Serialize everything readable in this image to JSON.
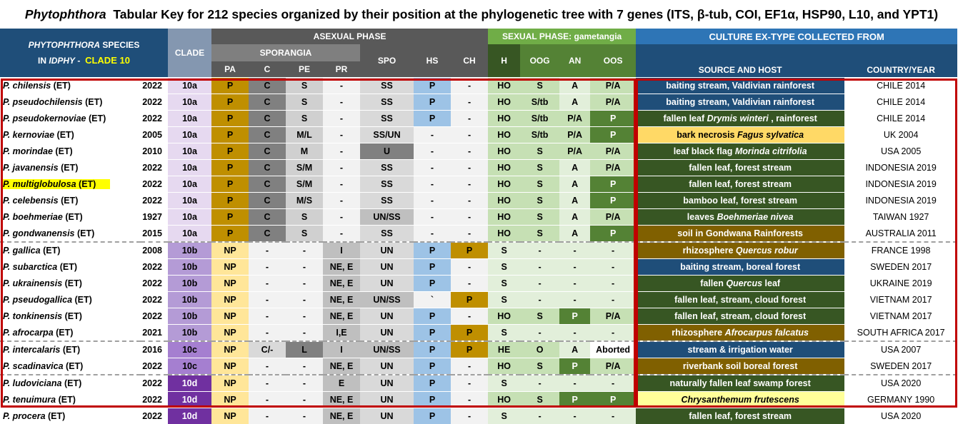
{
  "title": {
    "genus": "Phytophthora",
    "rest": "Tabular Key for 212 species organized by their position at the phylogenetic tree with 7 genes (ITS, β-tub, COI, EF1α, HSP90, L10, and YPT1)"
  },
  "header": {
    "species_line1_a": "PHYTOPHTHORA",
    "species_line1_b": "SPECIES",
    "species_line2_a": "IN",
    "species_line2_b": "IDPHY",
    "species_line2_c": "-",
    "species_clade": "CLADE 10",
    "clade": "CLADE",
    "asexual": "ASEXUAL PHASE",
    "sporangia": "SPORANGIA",
    "sexual": "SEXUAL PHASE: gametangia",
    "culture": "CULTURE EX-TYPE COLLECTED FROM",
    "pa": "PA",
    "c": "C",
    "pe": "PE",
    "pr": "PR",
    "spo": "SPO",
    "hs": "HS",
    "ch": "CH",
    "h": "H",
    "oog": "OOG",
    "an": "AN",
    "oos": "OOS",
    "source": "SOURCE AND HOST",
    "country": "COUNTRY/YEAR"
  },
  "colors": {
    "title_bar": "#1f4e79",
    "clade_header": "#8497b0",
    "asexual_header": "#595959",
    "sexual_header": "#70ad47",
    "culture_header": "#2e75b6",
    "frame": "#c00000"
  },
  "rows": [
    {
      "species": "P. chilensis",
      "et": "(ET)",
      "year": "2022",
      "clade": "10a",
      "pa": "P",
      "c": "C",
      "pe": "S",
      "pr": "-",
      "spo": "SS",
      "hs": "P",
      "ch": "-",
      "h": "HO",
      "oog": "S",
      "an": "A",
      "oos": "P/A",
      "host": "baiting stream, Valdivian rainforest",
      "host_i": "",
      "host_post": "",
      "country": "CHILE 2014",
      "cls": {
        "clade": "c-a",
        "pa": "pa-p",
        "c": "c-dark",
        "pe": "pe-c",
        "pr": "pr-c",
        "spo": "spo-c",
        "hs": "hs-p",
        "ch": "ch-n",
        "h": "sx-a",
        "oog": "sx-a",
        "an": "sx-b",
        "oos": "sx-a",
        "host": "src-blue"
      }
    },
    {
      "species": "P. pseudochilensis",
      "et": "(ET)",
      "year": "2022",
      "clade": "10a",
      "pa": "P",
      "c": "C",
      "pe": "S",
      "pr": "-",
      "spo": "SS",
      "hs": "P",
      "ch": "-",
      "h": "HO",
      "oog": "S/tb",
      "an": "A",
      "oos": "P/A",
      "host": "baiting stream, Valdivian rainforest",
      "host_i": "",
      "host_post": "",
      "country": "CHILE 2014",
      "cls": {
        "clade": "c-a",
        "pa": "pa-p",
        "c": "c-dark",
        "pe": "pe-c",
        "pr": "pr-c",
        "spo": "spo-c",
        "hs": "hs-p",
        "ch": "ch-n",
        "h": "sx-a",
        "oog": "sx-a",
        "an": "sx-b",
        "oos": "sx-a",
        "host": "src-blue"
      }
    },
    {
      "species": "P. pseudokernoviae",
      "et": "(ET)",
      "year": "2022",
      "clade": "10a",
      "pa": "P",
      "c": "C",
      "pe": "S",
      "pr": "-",
      "spo": "SS",
      "hs": "P",
      "ch": "-",
      "h": "HO",
      "oog": "S/tb",
      "an": "P/A",
      "oos": "P",
      "host": "fallen leaf ",
      "host_i": "Drymis winteri",
      "host_post": " , rainforest",
      "country": "CHILE 2014",
      "cls": {
        "clade": "c-a",
        "pa": "pa-p",
        "c": "c-dark",
        "pe": "pe-c",
        "pr": "pr-c",
        "spo": "spo-c",
        "hs": "hs-p",
        "ch": "ch-n",
        "h": "sx-a",
        "oog": "sx-a",
        "an": "sx-a",
        "oos": "sx-p",
        "host": "src-green"
      }
    },
    {
      "species": "P. kernoviae",
      "et": "(ET)",
      "year": "2005",
      "clade": "10a",
      "pa": "P",
      "c": "C",
      "pe": "M/L",
      "pr": "-",
      "spo": "SS/UN",
      "hs": "-",
      "ch": "-",
      "h": "HO",
      "oog": "S/tb",
      "an": "P/A",
      "oos": "P",
      "host": "bark necrosis ",
      "host_i": "Fagus sylvatica",
      "host_post": "",
      "country": "UK 2004",
      "cls": {
        "clade": "c-a",
        "pa": "pa-p",
        "c": "c-dark",
        "pe": "pe-c",
        "pr": "pr-c",
        "spo": "spo-c",
        "hs": "hs-n",
        "ch": "ch-n",
        "h": "sx-a",
        "oog": "sx-a",
        "an": "sx-a",
        "oos": "sx-p",
        "host": "src-yel"
      }
    },
    {
      "species": "P. morindae",
      "et": "(ET)",
      "year": "2010",
      "clade": "10a",
      "pa": "P",
      "c": "C",
      "pe": "M",
      "pr": "-",
      "spo": "U",
      "hs": "-",
      "ch": "-",
      "h": "HO",
      "oog": "S",
      "an": "P/A",
      "oos": "P/A",
      "host": "leaf black flag ",
      "host_i": "Morinda citrifolia",
      "host_post": "",
      "country": "USA 2005",
      "cls": {
        "clade": "c-a",
        "pa": "pa-p",
        "c": "c-dark",
        "pe": "pe-c",
        "pr": "pr-c",
        "spo": "spo-x",
        "hs": "hs-n",
        "ch": "ch-n",
        "h": "sx-a",
        "oog": "sx-a",
        "an": "sx-a",
        "oos": "sx-a",
        "host": "src-green"
      }
    },
    {
      "species": "P. javanensis",
      "et": "(ET)",
      "year": "2022",
      "clade": "10a",
      "pa": "P",
      "c": "C",
      "pe": "S/M",
      "pr": "-",
      "spo": "SS",
      "hs": "-",
      "ch": "-",
      "h": "HO",
      "oog": "S",
      "an": "A",
      "oos": "P/A",
      "host": "fallen leaf, forest stream",
      "host_i": "",
      "host_post": "",
      "country": "INDONESIA 2019",
      "cls": {
        "clade": "c-a",
        "pa": "pa-p",
        "c": "c-dark",
        "pe": "pe-c",
        "pr": "pr-c",
        "spo": "spo-c",
        "hs": "hs-n",
        "ch": "ch-n",
        "h": "sx-a",
        "oog": "sx-a",
        "an": "sx-b",
        "oos": "sx-a",
        "host": "src-green"
      }
    },
    {
      "species": "P. multiglobulosa",
      "et": "(ET)",
      "year": "2022",
      "clade": "10a",
      "pa": "P",
      "c": "C",
      "pe": "S/M",
      "pr": "-",
      "spo": "SS",
      "hs": "-",
      "ch": "-",
      "h": "HO",
      "oog": "S",
      "an": "A",
      "oos": "P",
      "host": "fallen leaf, forest stream",
      "host_i": "",
      "host_post": "",
      "country": "INDONESIA 2019",
      "hl": true,
      "cls": {
        "clade": "c-a",
        "pa": "pa-p",
        "c": "c-dark",
        "pe": "pe-c",
        "pr": "pr-c",
        "spo": "spo-c",
        "hs": "hs-n",
        "ch": "ch-n",
        "h": "sx-a",
        "oog": "sx-a",
        "an": "sx-b",
        "oos": "sx-p",
        "host": "src-green"
      }
    },
    {
      "species": "P. celebensis",
      "et": "(ET)",
      "year": "2022",
      "clade": "10a",
      "pa": "P",
      "c": "C",
      "pe": "M/S",
      "pr": "-",
      "spo": "SS",
      "hs": "-",
      "ch": "-",
      "h": "HO",
      "oog": "S",
      "an": "A",
      "oos": "P",
      "host": "bamboo leaf, forest stream",
      "host_i": "",
      "host_post": "",
      "country": "INDONESIA 2019",
      "cls": {
        "clade": "c-a",
        "pa": "pa-p",
        "c": "c-dark",
        "pe": "pe-c",
        "pr": "pr-c",
        "spo": "spo-c",
        "hs": "hs-n",
        "ch": "ch-n",
        "h": "sx-a",
        "oog": "sx-a",
        "an": "sx-b",
        "oos": "sx-p",
        "host": "src-green"
      }
    },
    {
      "species": "P. boehmeriae",
      "et": "(ET)",
      "year": "1927",
      "clade": "10a",
      "pa": "P",
      "c": "C",
      "pe": "S",
      "pr": "-",
      "spo": "UN/SS",
      "hs": "-",
      "ch": "-",
      "h": "HO",
      "oog": "S",
      "an": "A",
      "oos": "P/A",
      "host": "leaves ",
      "host_i": "Boehmeriae nivea",
      "host_post": "",
      "country": "TAIWAN 1927",
      "cls": {
        "clade": "c-a",
        "pa": "pa-p",
        "c": "c-dark",
        "pe": "pe-c",
        "pr": "pr-c",
        "spo": "spo-d",
        "hs": "hs-n",
        "ch": "ch-n",
        "h": "sx-a",
        "oog": "sx-a",
        "an": "sx-b",
        "oos": "sx-a",
        "host": "src-green"
      }
    },
    {
      "species": "P. gondwanensis",
      "et": "(ET)",
      "year": "2015",
      "clade": "10a",
      "pa": "P",
      "c": "C",
      "pe": "S",
      "pr": "-",
      "spo": "SS",
      "hs": "-",
      "ch": "-",
      "h": "HO",
      "oog": "S",
      "an": "A",
      "oos": "P",
      "host": "soil in Gondwana Rainforests",
      "host_i": "",
      "host_post": "",
      "country": "AUSTRALIA 2011",
      "cls": {
        "clade": "c-a",
        "pa": "pa-p",
        "c": "c-dark",
        "pe": "pe-c",
        "pr": "pr-c",
        "spo": "spo-c",
        "hs": "hs-n",
        "ch": "ch-n",
        "h": "sx-a",
        "oog": "sx-a",
        "an": "sx-b",
        "oos": "sx-p",
        "host": "src-brown"
      }
    },
    {
      "species": "P. gallica",
      "et": "(ET)",
      "year": "2008",
      "clade": "10b",
      "pa": "NP",
      "c": "-",
      "pe": "-",
      "pr": "I",
      "spo": "UN",
      "hs": "P",
      "ch": "P",
      "h": "S",
      "oog": "-",
      "an": "-",
      "oos": "-",
      "host": "rhizosphere ",
      "host_i": "Quercus robur",
      "host_post": "",
      "country": "FRANCE 1998",
      "dash": true,
      "cls": {
        "clade": "c-b",
        "pa": "pa-np",
        "c": "pr-c",
        "pe": "pr-c",
        "pr": "pr-d",
        "spo": "spo-c",
        "hs": "hs-p",
        "ch": "ch-p",
        "h": "sx-b",
        "oog": "sx-b",
        "an": "sx-b",
        "oos": "sx-b",
        "host": "src-brown"
      }
    },
    {
      "species": "P. subarctica",
      "et": "(ET)",
      "year": "2022",
      "clade": "10b",
      "pa": "NP",
      "c": "-",
      "pe": "-",
      "pr": "NE, E",
      "spo": "UN",
      "hs": "P",
      "ch": "-",
      "h": "S",
      "oog": "-",
      "an": "-",
      "oos": "-",
      "host": "baiting stream, boreal forest",
      "host_i": "",
      "host_post": "",
      "country": "SWEDEN 2017",
      "cls": {
        "clade": "c-b",
        "pa": "pa-np",
        "c": "pr-c",
        "pe": "pr-c",
        "pr": "pr-d",
        "spo": "spo-c",
        "hs": "hs-p",
        "ch": "ch-n",
        "h": "sx-b",
        "oog": "sx-b",
        "an": "sx-b",
        "oos": "sx-b",
        "host": "src-blue"
      }
    },
    {
      "species": "P. ukrainensis",
      "et": "(ET)",
      "year": "2022",
      "clade": "10b",
      "pa": "NP",
      "c": "-",
      "pe": "-",
      "pr": "NE, E",
      "spo": "UN",
      "hs": "P",
      "ch": "-",
      "h": "S",
      "oog": "-",
      "an": "-",
      "oos": "-",
      "host": "fallen ",
      "host_i": "Quercus",
      "host_post": " leaf",
      "country": "UKRAINE 2019",
      "cls": {
        "clade": "c-b",
        "pa": "pa-np",
        "c": "pr-c",
        "pe": "pr-c",
        "pr": "pr-d",
        "spo": "spo-c",
        "hs": "hs-p",
        "ch": "ch-n",
        "h": "sx-b",
        "oog": "sx-b",
        "an": "sx-b",
        "oos": "sx-b",
        "host": "src-green"
      }
    },
    {
      "species": "P. pseudogallica",
      "et": "(ET)",
      "year": "2022",
      "clade": "10b",
      "pa": "NP",
      "c": "-",
      "pe": "-",
      "pr": "NE, E",
      "spo": "UN/SS",
      "hs": "`",
      "ch": "P",
      "h": "S",
      "oog": "-",
      "an": "-",
      "oos": "-",
      "host": "fallen leaf, stream, cloud forest",
      "host_i": "",
      "host_post": "",
      "country": "VIETNAM 2017",
      "cls": {
        "clade": "c-b",
        "pa": "pa-np",
        "c": "pr-c",
        "pe": "pr-c",
        "pr": "pr-d",
        "spo": "spo-d",
        "hs": "hs-n",
        "ch": "ch-p",
        "h": "sx-b",
        "oog": "sx-b",
        "an": "sx-b",
        "oos": "sx-b",
        "host": "src-green"
      }
    },
    {
      "species": "P. tonkinensis",
      "et": "(ET)",
      "year": "2022",
      "clade": "10b",
      "pa": "NP",
      "c": "-",
      "pe": "-",
      "pr": "NE, E",
      "spo": "UN",
      "hs": "P",
      "ch": "-",
      "h": "HO",
      "oog": "S",
      "an": "P",
      "oos": "P/A",
      "host": "fallen leaf, stream, cloud forest",
      "host_i": "",
      "host_post": "",
      "country": "VIETNAM 2017",
      "cls": {
        "clade": "c-b",
        "pa": "pa-np",
        "c": "pr-c",
        "pe": "pr-c",
        "pr": "pr-d",
        "spo": "spo-c",
        "hs": "hs-p",
        "ch": "ch-n",
        "h": "sx-a",
        "oog": "sx-a",
        "an": "sx-p",
        "oos": "sx-a",
        "host": "src-green"
      }
    },
    {
      "species": "P. afrocarpa",
      "et": "(ET)",
      "year": "2021",
      "clade": "10b",
      "pa": "NP",
      "c": "-",
      "pe": "-",
      "pr": "I,E",
      "spo": "UN",
      "hs": "P",
      "ch": "P",
      "h": "S",
      "oog": "-",
      "an": "-",
      "oos": "-",
      "host": "rhizosphere ",
      "host_i": "Afrocarpus falcatus",
      "host_post": "",
      "country": "SOUTH AFRICA 2017",
      "cls": {
        "clade": "c-b",
        "pa": "pa-np",
        "c": "pr-c",
        "pe": "pr-c",
        "pr": "pr-d",
        "spo": "spo-c",
        "hs": "hs-p",
        "ch": "ch-p",
        "h": "sx-b",
        "oog": "sx-b",
        "an": "sx-b",
        "oos": "sx-b",
        "host": "src-brown"
      }
    },
    {
      "species": "P. intercalaris",
      "et": "(ET)",
      "year": "2016",
      "clade": "10c",
      "pa": "NP",
      "c": "C/-",
      "pe": "L",
      "pr": "I",
      "spo": "UN/SS",
      "hs": "P",
      "ch": "P",
      "h": "HE",
      "oog": "O",
      "an": "A",
      "oos": "Aborted",
      "host": "stream & irrigation water",
      "host_i": "",
      "host_post": "",
      "country": "USA 2007",
      "dash": true,
      "cls": {
        "clade": "c-c",
        "pa": "pa-np",
        "c": "c-light",
        "pe": "pe-d",
        "pr": "pr-d",
        "spo": "spo-d",
        "hs": "hs-p",
        "ch": "ch-p",
        "h": "sx-a",
        "oog": "sx-a",
        "an": "sx-b",
        "oos": "sx-ab",
        "host": "src-blue"
      }
    },
    {
      "species": "P. scadinavica",
      "et": "(ET)",
      "year": "2022",
      "clade": "10c",
      "pa": "NP",
      "c": "-",
      "pe": "-",
      "pr": "NE, E",
      "spo": "UN",
      "hs": "P",
      "ch": "-",
      "h": "HO",
      "oog": "S",
      "an": "P",
      "oos": "P/A",
      "host": "riverbank soil boreal forest",
      "host_i": "",
      "host_post": "",
      "country": "SWEDEN 2017",
      "cls": {
        "clade": "c-c",
        "pa": "pa-np",
        "c": "pr-c",
        "pe": "pr-c",
        "pr": "pr-d",
        "spo": "spo-c",
        "hs": "hs-p",
        "ch": "ch-n",
        "h": "sx-a",
        "oog": "sx-a",
        "an": "sx-p",
        "oos": "sx-a",
        "host": "src-brown"
      }
    },
    {
      "species": "P. ludoviciana",
      "et": "(ET)",
      "year": "2022",
      "clade": "10d",
      "pa": "NP",
      "c": "-",
      "pe": "-",
      "pr": "E",
      "spo": "UN",
      "hs": "P",
      "ch": "-",
      "h": "S",
      "oog": "-",
      "an": "-",
      "oos": "-",
      "host": "naturally fallen leaf swamp forest",
      "host_i": "",
      "host_post": "",
      "country": "USA 2020",
      "dash": true,
      "cls": {
        "clade": "c-d",
        "pa": "pa-np",
        "c": "pr-c",
        "pe": "pr-c",
        "pr": "pr-d",
        "spo": "spo-c",
        "hs": "hs-p",
        "ch": "ch-n",
        "h": "sx-b",
        "oog": "sx-b",
        "an": "sx-b",
        "oos": "sx-b",
        "host": "src-green"
      }
    },
    {
      "species": "P. tenuimura",
      "et": "(ET)",
      "year": "2022",
      "clade": "10d",
      "pa": "NP",
      "c": "-",
      "pe": "-",
      "pr": "NE, E",
      "spo": "UN",
      "hs": "P",
      "ch": "-",
      "h": "HO",
      "oog": "S",
      "an": "P",
      "oos": "P",
      "host": "",
      "host_i": "Chrysanthemum frutescens",
      "host_post": "",
      "country": "GERMANY 1990",
      "cls": {
        "clade": "c-d",
        "pa": "pa-np",
        "c": "pr-c",
        "pe": "pr-c",
        "pr": "pr-d",
        "spo": "spo-c",
        "hs": "hs-p",
        "ch": "ch-n",
        "h": "sx-a",
        "oog": "sx-a",
        "an": "sx-p",
        "oos": "sx-p",
        "host": "src-pale"
      }
    },
    {
      "species": "P. procera",
      "et": "(ET)",
      "year": "2022",
      "clade": "10d",
      "pa": "NP",
      "c": "-",
      "pe": "-",
      "pr": "NE, E",
      "spo": "UN",
      "hs": "P",
      "ch": "-",
      "h": "S",
      "oog": "-",
      "an": "-",
      "oos": "-",
      "host": "fallen leaf, forest stream",
      "host_i": "",
      "host_post": "",
      "country": "USA 2020",
      "cls": {
        "clade": "c-d",
        "pa": "pa-np",
        "c": "pr-c",
        "pe": "pr-c",
        "pr": "pr-d",
        "spo": "spo-c",
        "hs": "hs-p",
        "ch": "ch-n",
        "h": "sx-b",
        "oog": "sx-b",
        "an": "sx-b",
        "oos": "sx-b",
        "host": "src-green"
      }
    }
  ]
}
